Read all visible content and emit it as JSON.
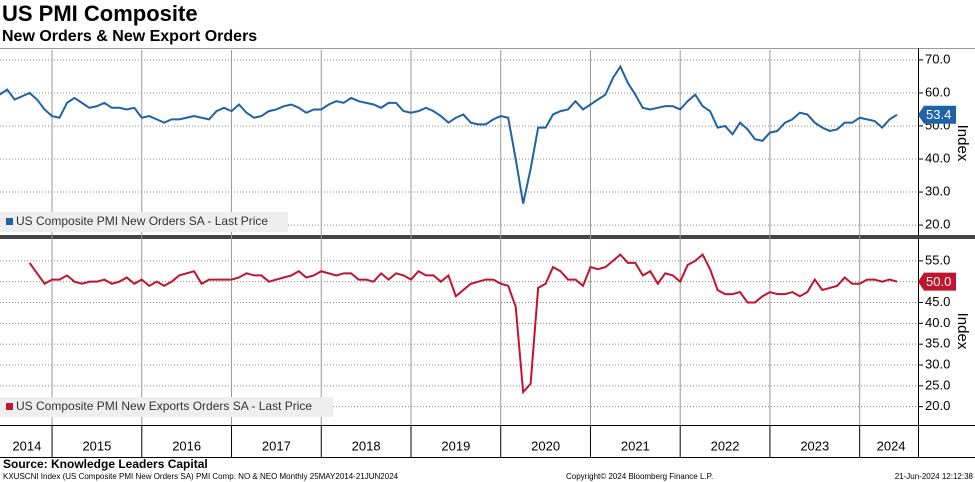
{
  "chart_data": {
    "type": "line",
    "title": "US PMI Composite",
    "subtitle": "New Orders & New Export Orders",
    "x": [
      2014.417,
      2014.5,
      2014.583,
      2014.667,
      2014.75,
      2014.833,
      2014.917,
      2015.0,
      2015.083,
      2015.167,
      2015.25,
      2015.333,
      2015.417,
      2015.5,
      2015.583,
      2015.667,
      2015.75,
      2015.833,
      2015.917,
      2016.0,
      2016.083,
      2016.167,
      2016.25,
      2016.333,
      2016.417,
      2016.5,
      2016.583,
      2016.667,
      2016.75,
      2016.833,
      2016.917,
      2017.0,
      2017.083,
      2017.167,
      2017.25,
      2017.333,
      2017.417,
      2017.5,
      2017.583,
      2017.667,
      2017.75,
      2017.833,
      2017.917,
      2018.0,
      2018.083,
      2018.167,
      2018.25,
      2018.333,
      2018.417,
      2018.5,
      2018.583,
      2018.667,
      2018.75,
      2018.833,
      2018.917,
      2019.0,
      2019.083,
      2019.167,
      2019.25,
      2019.333,
      2019.417,
      2019.5,
      2019.583,
      2019.667,
      2019.75,
      2019.833,
      2019.917,
      2020.0,
      2020.083,
      2020.167,
      2020.25,
      2020.333,
      2020.417,
      2020.5,
      2020.583,
      2020.667,
      2020.75,
      2020.833,
      2020.917,
      2021.0,
      2021.083,
      2021.167,
      2021.25,
      2021.333,
      2021.417,
      2021.5,
      2021.583,
      2021.667,
      2021.75,
      2021.833,
      2021.917,
      2022.0,
      2022.083,
      2022.167,
      2022.25,
      2022.333,
      2022.417,
      2022.5,
      2022.583,
      2022.667,
      2022.75,
      2022.833,
      2022.917,
      2023.0,
      2023.083,
      2023.167,
      2023.25,
      2023.333,
      2023.417,
      2023.5,
      2023.583,
      2023.667,
      2023.75,
      2023.833,
      2023.917,
      2024.0,
      2024.083,
      2024.167,
      2024.25,
      2024.333,
      2024.417
    ],
    "xlim": [
      2014.42,
      2024.65
    ],
    "xticks": [
      {
        "value": 2014.72,
        "label": "2014"
      },
      {
        "value": 2015.5,
        "label": "2015"
      },
      {
        "value": 2016.5,
        "label": "2016"
      },
      {
        "value": 2017.5,
        "label": "2017"
      },
      {
        "value": 2018.5,
        "label": "2018"
      },
      {
        "value": 2019.5,
        "label": "2019"
      },
      {
        "value": 2020.5,
        "label": "2020"
      },
      {
        "value": 2021.5,
        "label": "2021"
      },
      {
        "value": 2022.5,
        "label": "2022"
      },
      {
        "value": 2023.5,
        "label": "2023"
      },
      {
        "value": 2024.35,
        "label": "2024"
      }
    ],
    "xgrid": [
      2015,
      2016,
      2017,
      2018,
      2019,
      2020,
      2021,
      2022,
      2023,
      2024
    ],
    "ylim": [
      17,
      73
    ],
    "yticks": [
      {
        "value": 20,
        "label": "20.0"
      },
      {
        "value": 30,
        "label": "30.0"
      },
      {
        "value": 40,
        "label": "40.0"
      },
      {
        "value": 50,
        "label": "50.0"
      },
      {
        "value": 60,
        "label": "60.0"
      },
      {
        "value": 70,
        "label": "70.0"
      }
    ],
    "ylabel": "Index",
    "y2lim": [
      15.6,
      60
    ],
    "y2ticks": [
      {
        "value": 20,
        "label": "20.0"
      },
      {
        "value": 25,
        "label": "25.0"
      },
      {
        "value": 30,
        "label": "30.0"
      },
      {
        "value": 35,
        "label": "35.0"
      },
      {
        "value": 40,
        "label": "40.0"
      },
      {
        "value": 45,
        "label": "45.0"
      },
      {
        "value": 50,
        "label": "50.0"
      },
      {
        "value": 55,
        "label": "55.0"
      }
    ],
    "y2label": "Index",
    "grid": true,
    "series": [
      {
        "name": "US Composite PMI New Orders SA - Last Price",
        "color": "#1f62a5",
        "axis": "y",
        "values": [
          59.5,
          61,
          58,
          59,
          60,
          58,
          55,
          53,
          52.5,
          57,
          58.5,
          57,
          55.5,
          56,
          57,
          55.5,
          55.5,
          55,
          55.5,
          52.5,
          53,
          52,
          51,
          52,
          52,
          52.5,
          53,
          52.5,
          52,
          54.5,
          55.5,
          54.5,
          56.5,
          54,
          52.5,
          53,
          54.5,
          55,
          56,
          56.5,
          55.5,
          54,
          55,
          55,
          56.5,
          57.5,
          57,
          58.5,
          57.5,
          57,
          56.5,
          55.5,
          57,
          57,
          54.5,
          54,
          54.5,
          55.5,
          54.5,
          53,
          51,
          52.5,
          53.5,
          51,
          50.5,
          50.5,
          52,
          53,
          52.5,
          40,
          26.5,
          37,
          49.5,
          49.5,
          53.5,
          54.5,
          55,
          57.5,
          55,
          56.5,
          58,
          59.5,
          64.5,
          68,
          63,
          59.5,
          55.5,
          55,
          55.5,
          56,
          56,
          55,
          57.5,
          59.5,
          56,
          54.5,
          49.5,
          50,
          47.5,
          51,
          49,
          46,
          45.5,
          48,
          48.5,
          51,
          52,
          54,
          53.5,
          51,
          49.5,
          48.5,
          49,
          51,
          51,
          52.5,
          52,
          51.5,
          49.5,
          52,
          53.4
        ]
      },
      {
        "name": "US Composite PMI New Exports Orders SA - Last Price",
        "color": "#c0152f",
        "axis": "y2",
        "values": [
          null,
          null,
          null,
          null,
          54.5,
          52,
          49.5,
          50.5,
          50.5,
          51.5,
          50,
          49.5,
          50,
          50,
          50.5,
          49.5,
          50,
          51,
          49.5,
          50.5,
          49,
          50,
          49,
          50,
          51.5,
          52,
          52.5,
          49.5,
          50.5,
          50.5,
          50.5,
          50.5,
          51,
          52,
          51.5,
          51.5,
          50,
          50.5,
          51,
          51.5,
          52.5,
          51,
          51.5,
          52.5,
          52,
          51.5,
          52,
          52,
          50.5,
          50.5,
          50,
          52,
          50.5,
          52,
          51.5,
          50.5,
          52.5,
          51.5,
          51.5,
          50,
          51.5,
          46.5,
          48,
          49.5,
          50,
          50.5,
          50.5,
          49.5,
          49,
          44,
          23.5,
          25.5,
          48.5,
          49.5,
          53.5,
          52.5,
          50.5,
          50.5,
          49,
          53.5,
          53,
          53.5,
          55,
          56.5,
          54.5,
          54.5,
          51.5,
          52.5,
          49.5,
          52,
          51.5,
          50,
          54,
          55,
          56.5,
          53,
          48,
          47,
          47,
          47.5,
          45,
          45,
          46.5,
          47.5,
          47,
          47,
          47.5,
          46.5,
          47.5,
          50.5,
          48,
          48.5,
          49,
          51,
          49.5,
          49.5,
          50.5,
          50.5,
          50,
          50.5,
          50
        ],
        "value_labels": [
          null,
          null,
          null,
          null,
          null,
          null,
          null,
          null,
          null,
          null,
          null,
          null,
          null,
          null,
          null,
          null,
          null,
          null,
          null,
          null,
          null,
          null,
          null,
          null,
          null,
          null,
          null,
          null,
          null,
          null,
          null,
          null,
          null,
          null,
          null,
          null,
          null,
          null,
          null,
          null,
          null,
          null,
          null,
          null,
          null,
          null,
          null,
          null,
          null,
          null,
          null,
          null,
          null,
          null,
          null,
          null,
          null,
          null,
          null,
          null,
          null,
          null,
          null,
          null,
          null,
          null,
          null,
          null,
          null,
          null,
          null,
          null,
          null,
          null,
          null,
          null,
          null,
          null,
          null,
          null,
          null,
          null,
          null,
          null,
          null,
          null,
          null,
          null,
          null,
          null,
          null,
          null,
          null,
          null,
          null,
          null,
          null,
          null,
          null,
          null,
          null,
          null,
          null,
          null,
          null,
          null,
          null,
          null,
          null,
          null,
          null,
          null,
          null,
          null,
          null,
          null,
          null,
          null,
          null,
          null,
          "50.0"
        ]
      }
    ]
  },
  "footer": {
    "source": "Source: Knowledge Leaders Capital",
    "info": "KXUSCNI Index (US Composite PMI New Orders SA) PMI Comp. NO & NEO  Monthly 25MAY2014-21JUN2024",
    "copyright": "Copyright© 2024 Bloomberg Finance L.P.",
    "timestamp": "21-Jun-2024 12:12:38"
  }
}
